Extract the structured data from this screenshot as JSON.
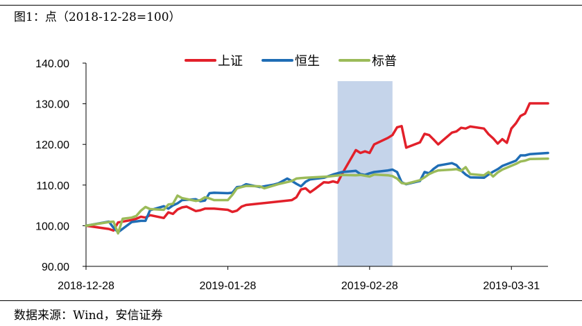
{
  "figure": {
    "title": "图1：点（2018-12-28=100）",
    "source": "数据来源：Wind，安信证券"
  },
  "chart_data": {
    "type": "line",
    "title": "",
    "xlabel": "",
    "ylabel": "",
    "ylim": [
      90,
      140
    ],
    "yticks": [
      "90.00",
      "100.00",
      "110.00",
      "120.00",
      "130.00",
      "140.00"
    ],
    "ytick_values": [
      90,
      100,
      110,
      120,
      130,
      140
    ],
    "xticks": [
      "2018-12-28",
      "2019-01-28",
      "2019-02-28",
      "2019-03-31"
    ],
    "xtick_values": [
      "2018-12-28",
      "2019-01-28",
      "2019-02-28",
      "2019-03-31"
    ],
    "xlim": [
      "2018-12-28",
      "2019-04-08"
    ],
    "shaded_region": [
      "2019-02-21",
      "2019-03-05"
    ],
    "shaded_color": "#c5d4ea",
    "grid": false,
    "legend_position": "top",
    "series": [
      {
        "name": "上证",
        "color": "#e2202a",
        "points": [
          [
            "2018-12-28",
            100.0
          ],
          [
            "2019-01-02",
            99.2
          ],
          [
            "2019-01-03",
            98.8
          ],
          [
            "2019-01-04",
            100.8
          ],
          [
            "2019-01-07",
            101.4
          ],
          [
            "2019-01-08",
            101.7
          ],
          [
            "2019-01-09",
            102.2
          ],
          [
            "2019-01-10",
            102.0
          ],
          [
            "2019-01-11",
            102.6
          ],
          [
            "2019-01-14",
            101.9
          ],
          [
            "2019-01-15",
            103.3
          ],
          [
            "2019-01-16",
            102.9
          ],
          [
            "2019-01-17",
            104.0
          ],
          [
            "2019-01-18",
            104.5
          ],
          [
            "2019-01-19",
            104.7
          ],
          [
            "2019-01-21",
            103.6
          ],
          [
            "2019-01-22",
            103.8
          ],
          [
            "2019-01-23",
            104.2
          ],
          [
            "2019-01-25",
            104.2
          ],
          [
            "2019-01-28",
            103.9
          ],
          [
            "2019-01-29",
            103.4
          ],
          [
            "2019-01-30",
            103.7
          ],
          [
            "2019-01-31",
            104.7
          ],
          [
            "2019-02-01",
            105.1
          ],
          [
            "2019-02-11",
            106.3
          ],
          [
            "2019-02-12",
            107.0
          ],
          [
            "2019-02-13",
            108.9
          ],
          [
            "2019-02-14",
            109.2
          ],
          [
            "2019-02-15",
            108.2
          ],
          [
            "2019-02-16",
            109.0
          ],
          [
            "2019-02-18",
            110.7
          ],
          [
            "2019-02-19",
            110.6
          ],
          [
            "2019-02-20",
            110.9
          ],
          [
            "2019-02-21",
            110.6
          ],
          [
            "2019-02-22",
            112.8
          ],
          [
            "2019-02-25",
            118.6
          ],
          [
            "2019-02-26",
            117.9
          ],
          [
            "2019-02-27",
            118.3
          ],
          [
            "2019-02-28",
            117.9
          ],
          [
            "2019-03-01",
            120.0
          ],
          [
            "2019-03-04",
            121.6
          ],
          [
            "2019-03-05",
            122.3
          ],
          [
            "2019-03-06",
            124.2
          ],
          [
            "2019-03-07",
            124.5
          ],
          [
            "2019-03-08",
            119.2
          ],
          [
            "2019-03-11",
            120.5
          ],
          [
            "2019-03-12",
            122.6
          ],
          [
            "2019-03-13",
            122.3
          ],
          [
            "2019-03-14",
            121.2
          ],
          [
            "2019-03-15",
            120.0
          ],
          [
            "2019-03-18",
            122.9
          ],
          [
            "2019-03-19",
            123.2
          ],
          [
            "2019-03-20",
            124.1
          ],
          [
            "2019-03-21",
            123.9
          ],
          [
            "2019-03-22",
            124.4
          ],
          [
            "2019-03-25",
            123.9
          ],
          [
            "2019-03-26",
            122.5
          ],
          [
            "2019-03-27",
            121.5
          ],
          [
            "2019-03-28",
            120.2
          ],
          [
            "2019-03-29",
            121.3
          ],
          [
            "2019-03-30",
            120.4
          ],
          [
            "2019-03-31",
            123.9
          ],
          [
            "2019-04-01",
            125.2
          ],
          [
            "2019-04-02",
            127.0
          ],
          [
            "2019-04-03",
            127.6
          ],
          [
            "2019-04-04",
            130.1
          ],
          [
            "2019-04-08",
            130.1
          ]
        ]
      },
      {
        "name": "恒生",
        "color": "#1f6db5",
        "points": [
          [
            "2018-12-28",
            100.0
          ],
          [
            "2019-01-02",
            101.0
          ],
          [
            "2019-01-03",
            99.5
          ],
          [
            "2019-01-04",
            98.4
          ],
          [
            "2019-01-07",
            100.9
          ],
          [
            "2019-01-09",
            101.2
          ],
          [
            "2019-01-10",
            101.2
          ],
          [
            "2019-01-11",
            103.8
          ],
          [
            "2019-01-14",
            104.8
          ],
          [
            "2019-01-15",
            104.2
          ],
          [
            "2019-01-16",
            105.0
          ],
          [
            "2019-01-17",
            105.5
          ],
          [
            "2019-01-18",
            106.3
          ],
          [
            "2019-01-21",
            106.5
          ],
          [
            "2019-01-22",
            106.0
          ],
          [
            "2019-01-23",
            106.2
          ],
          [
            "2019-01-24",
            108.0
          ],
          [
            "2019-01-25",
            108.1
          ],
          [
            "2019-01-28",
            108.0
          ],
          [
            "2019-01-29",
            108.1
          ],
          [
            "2019-01-30",
            109.5
          ],
          [
            "2019-01-31",
            109.6
          ],
          [
            "2019-02-01",
            110.2
          ],
          [
            "2019-02-04",
            109.5
          ],
          [
            "2019-02-07",
            110.1
          ],
          [
            "2019-02-08",
            110.4
          ],
          [
            "2019-02-10",
            111.6
          ],
          [
            "2019-02-11",
            111.0
          ],
          [
            "2019-02-12",
            110.3
          ],
          [
            "2019-02-13",
            109.7
          ],
          [
            "2019-02-14",
            110.8
          ],
          [
            "2019-02-15",
            111.4
          ],
          [
            "2019-02-18",
            111.8
          ],
          [
            "2019-02-20",
            112.6
          ],
          [
            "2019-02-22",
            113.2
          ],
          [
            "2019-02-25",
            113.5
          ],
          [
            "2019-02-26",
            112.7
          ],
          [
            "2019-02-27",
            112.5
          ],
          [
            "2019-02-28",
            112.9
          ],
          [
            "2019-03-01",
            113.2
          ],
          [
            "2019-03-04",
            113.6
          ],
          [
            "2019-03-05",
            113.8
          ],
          [
            "2019-03-06",
            113.2
          ],
          [
            "2019-03-07",
            110.7
          ],
          [
            "2019-03-08",
            110.2
          ],
          [
            "2019-03-11",
            111.0
          ],
          [
            "2019-03-12",
            113.2
          ],
          [
            "2019-03-13",
            112.9
          ],
          [
            "2019-03-14",
            114.0
          ],
          [
            "2019-03-15",
            114.8
          ],
          [
            "2019-03-18",
            115.4
          ],
          [
            "2019-03-19",
            114.9
          ],
          [
            "2019-03-20",
            113.6
          ],
          [
            "2019-03-21",
            112.6
          ],
          [
            "2019-03-22",
            111.9
          ],
          [
            "2019-03-25",
            111.8
          ],
          [
            "2019-03-26",
            112.6
          ],
          [
            "2019-03-27",
            113.3
          ],
          [
            "2019-03-28",
            113.9
          ],
          [
            "2019-03-29",
            114.7
          ],
          [
            "2019-04-01",
            116.0
          ],
          [
            "2019-04-02",
            117.3
          ],
          [
            "2019-04-03",
            117.3
          ],
          [
            "2019-04-04",
            117.6
          ],
          [
            "2019-04-08",
            117.9
          ]
        ]
      },
      {
        "name": "标普",
        "color": "#9bbb59",
        "points": [
          [
            "2018-12-28",
            100.0
          ],
          [
            "2019-01-02",
            100.9
          ],
          [
            "2019-01-03",
            101.0
          ],
          [
            "2019-01-04",
            98.1
          ],
          [
            "2019-01-05",
            101.7
          ],
          [
            "2019-01-07",
            102.0
          ],
          [
            "2019-01-08",
            102.4
          ],
          [
            "2019-01-09",
            103.7
          ],
          [
            "2019-01-10",
            104.6
          ],
          [
            "2019-01-11",
            104.1
          ],
          [
            "2019-01-14",
            103.9
          ],
          [
            "2019-01-15",
            105.2
          ],
          [
            "2019-01-16",
            105.4
          ],
          [
            "2019-01-17",
            107.4
          ],
          [
            "2019-01-18",
            106.8
          ],
          [
            "2019-01-21",
            106.1
          ],
          [
            "2019-01-22",
            106.3
          ],
          [
            "2019-01-23",
            107.0
          ],
          [
            "2019-01-24",
            106.7
          ],
          [
            "2019-01-25",
            106.3
          ],
          [
            "2019-01-28",
            106.3
          ],
          [
            "2019-01-29",
            107.6
          ],
          [
            "2019-01-30",
            109.2
          ],
          [
            "2019-01-31",
            109.5
          ],
          [
            "2019-02-01",
            109.8
          ],
          [
            "2019-02-04",
            109.7
          ],
          [
            "2019-02-05",
            109.2
          ],
          [
            "2019-02-08",
            110.2
          ],
          [
            "2019-02-11",
            111.0
          ],
          [
            "2019-02-12",
            111.6
          ],
          [
            "2019-02-13",
            111.7
          ],
          [
            "2019-02-14",
            111.8
          ],
          [
            "2019-02-19",
            112.1
          ],
          [
            "2019-02-22",
            112.5
          ],
          [
            "2019-02-25",
            112.4
          ],
          [
            "2019-02-26",
            112.5
          ],
          [
            "2019-02-28",
            112.1
          ],
          [
            "2019-03-01",
            112.6
          ],
          [
            "2019-03-04",
            112.4
          ],
          [
            "2019-03-05",
            112.2
          ],
          [
            "2019-03-06",
            111.6
          ],
          [
            "2019-03-07",
            110.5
          ],
          [
            "2019-03-08",
            110.3
          ],
          [
            "2019-03-11",
            111.2
          ],
          [
            "2019-03-12",
            111.9
          ],
          [
            "2019-03-13",
            112.7
          ],
          [
            "2019-03-14",
            113.2
          ],
          [
            "2019-03-15",
            113.6
          ],
          [
            "2019-03-18",
            113.8
          ],
          [
            "2019-03-19",
            113.9
          ],
          [
            "2019-03-20",
            113.5
          ],
          [
            "2019-03-21",
            114.4
          ],
          [
            "2019-03-22",
            112.7
          ],
          [
            "2019-03-25",
            112.4
          ],
          [
            "2019-03-26",
            113.2
          ],
          [
            "2019-03-27",
            112.1
          ],
          [
            "2019-03-28",
            113.1
          ],
          [
            "2019-03-29",
            113.8
          ],
          [
            "2019-04-01",
            115.2
          ],
          [
            "2019-04-02",
            115.8
          ],
          [
            "2019-04-03",
            116.0
          ],
          [
            "2019-04-04",
            116.4
          ],
          [
            "2019-04-08",
            116.5
          ]
        ]
      }
    ]
  }
}
